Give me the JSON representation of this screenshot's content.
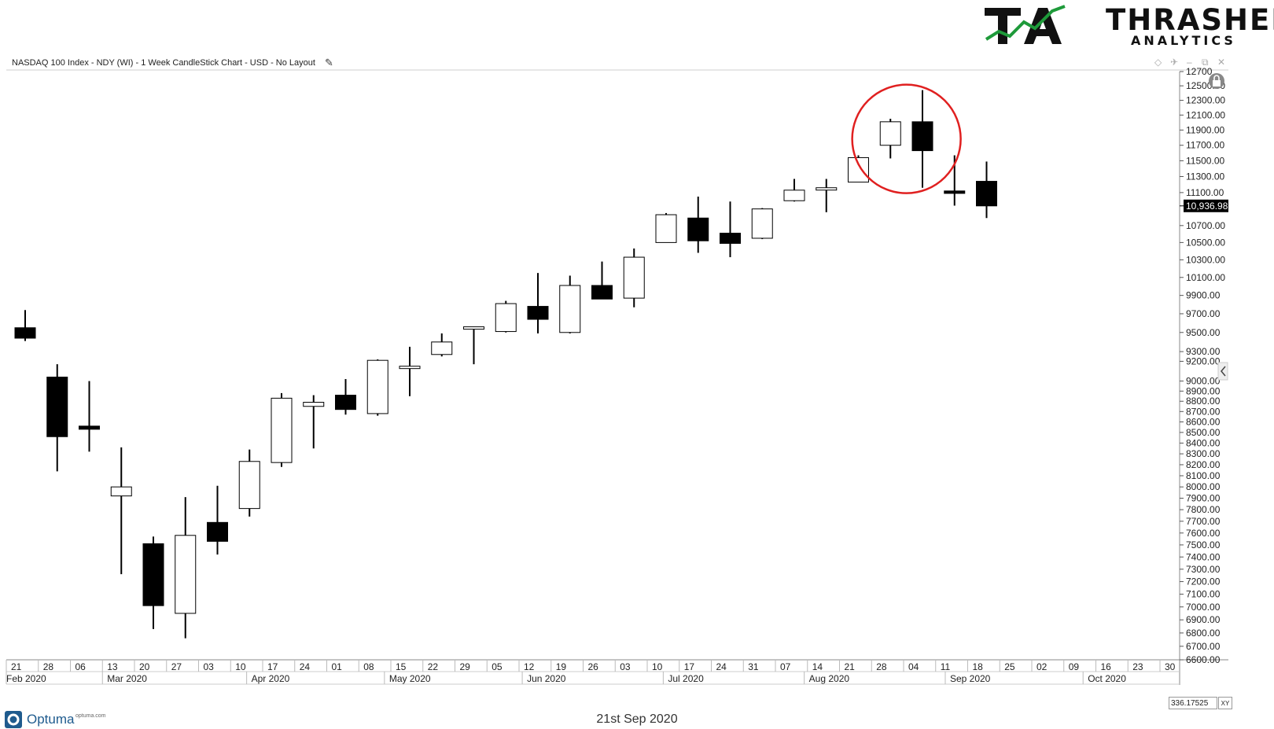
{
  "brand": {
    "name": "THRASHER",
    "sub": "ANALYTICS",
    "accent": "#1e9a3a"
  },
  "header": {
    "title": "NASDAQ 100 Index - NDY (WI) - 1 Week CandleStick Chart - USD - No Layout",
    "edit_icon": "pencil-icon"
  },
  "window_controls": [
    "diamond-icon",
    "pin-icon",
    "restore-icon",
    "close-icon"
  ],
  "footer": {
    "vendor": "Optuma",
    "vendor_url": "optuma.com",
    "date": "21st Sep 2020",
    "scale_value": "336.17525",
    "scale_mode": "XY"
  },
  "colors": {
    "down_candle": "#000000",
    "up_candle": "#ffffff",
    "highlight_circle": "#e02020",
    "last_price_bg": "#000000"
  },
  "chart_data": {
    "type": "candlestick",
    "title": "NASDAQ 100 Index - NDY (WI) - 1 Week CandleStick Chart - USD - No Layout",
    "y_scale": "log",
    "ylim": [
      6600,
      12700
    ],
    "last_price_label": "10,936.98",
    "last_price": 10936.98,
    "y_ticks": [
      {
        "value": 12700,
        "label": "12700"
      },
      {
        "value": 12500,
        "label": "12500.00"
      },
      {
        "value": 12300,
        "label": "12300.00"
      },
      {
        "value": 12100,
        "label": "12100.00"
      },
      {
        "value": 11900,
        "label": "11900.00"
      },
      {
        "value": 11700,
        "label": "11700.00"
      },
      {
        "value": 11500,
        "label": "11500.00"
      },
      {
        "value": 11300,
        "label": "11300.00"
      },
      {
        "value": 11100,
        "label": "11100.00"
      },
      {
        "value": 10700,
        "label": "10700.00"
      },
      {
        "value": 10500,
        "label": "10500.00"
      },
      {
        "value": 10300,
        "label": "10300.00"
      },
      {
        "value": 10100,
        "label": "10100.00"
      },
      {
        "value": 9900,
        "label": "9900.00"
      },
      {
        "value": 9700,
        "label": "9700.00"
      },
      {
        "value": 9500,
        "label": "9500.00"
      },
      {
        "value": 9300,
        "label": "9300.00"
      },
      {
        "value": 9200,
        "label": "9200.00"
      },
      {
        "value": 9000,
        "label": "9000.00"
      },
      {
        "value": 8900,
        "label": "8900.00"
      },
      {
        "value": 8800,
        "label": "8800.00"
      },
      {
        "value": 8700,
        "label": "8700.00"
      },
      {
        "value": 8600,
        "label": "8600.00"
      },
      {
        "value": 8500,
        "label": "8500.00"
      },
      {
        "value": 8400,
        "label": "8400.00"
      },
      {
        "value": 8300,
        "label": "8300.00"
      },
      {
        "value": 8200,
        "label": "8200.00"
      },
      {
        "value": 8100,
        "label": "8100.00"
      },
      {
        "value": 8000,
        "label": "8000.00"
      },
      {
        "value": 7900,
        "label": "7900.00"
      },
      {
        "value": 7800,
        "label": "7800.00"
      },
      {
        "value": 7700,
        "label": "7700.00"
      },
      {
        "value": 7600,
        "label": "7600.00"
      },
      {
        "value": 7500,
        "label": "7500.00"
      },
      {
        "value": 7400,
        "label": "7400.00"
      },
      {
        "value": 7300,
        "label": "7300.00"
      },
      {
        "value": 7200,
        "label": "7200.00"
      },
      {
        "value": 7100,
        "label": "7100.00"
      },
      {
        "value": 7000,
        "label": "7000.00"
      },
      {
        "value": 6900,
        "label": "6900.00"
      },
      {
        "value": 6800,
        "label": "6800.00"
      },
      {
        "value": 6700,
        "label": "6700.00"
      },
      {
        "value": 6600,
        "label": "6600.00"
      }
    ],
    "x_day_labels": [
      "21",
      "28",
      "06",
      "13",
      "20",
      "27",
      "03",
      "10",
      "17",
      "24",
      "01",
      "08",
      "15",
      "22",
      "29",
      "05",
      "12",
      "19",
      "26",
      "03",
      "10",
      "17",
      "24",
      "31",
      "07",
      "14",
      "21",
      "28",
      "04",
      "11",
      "18",
      "25",
      "02",
      "09",
      "16",
      "23",
      "30"
    ],
    "x_month_labels": [
      {
        "label": "Feb 2020",
        "week": 0
      },
      {
        "label": "Mar 2020",
        "week": 3
      },
      {
        "label": "Apr 2020",
        "week": 7.5
      },
      {
        "label": "May 2020",
        "week": 11.8
      },
      {
        "label": "Jun 2020",
        "week": 16.1
      },
      {
        "label": "Jul 2020",
        "week": 20.5
      },
      {
        "label": "Aug 2020",
        "week": 24.9
      },
      {
        "label": "Sep 2020",
        "week": 29.3
      },
      {
        "label": "Oct 2020",
        "week": 33.6
      }
    ],
    "candles": [
      {
        "week": "21",
        "open": 9550,
        "high": 9740,
        "low": 9410,
        "close": 9440
      },
      {
        "week": "28",
        "open": 9040,
        "high": 9170,
        "low": 8140,
        "close": 8460
      },
      {
        "week": "06",
        "open": 8560,
        "high": 9000,
        "low": 8320,
        "close": 8530
      },
      {
        "week": "13",
        "open": 7920,
        "high": 8360,
        "low": 7260,
        "close": 8000
      },
      {
        "week": "20",
        "open": 7510,
        "high": 7570,
        "low": 6830,
        "close": 7010
      },
      {
        "week": "27",
        "open": 6950,
        "high": 7910,
        "low": 6760,
        "close": 7580
      },
      {
        "week": "03",
        "open": 7690,
        "high": 8010,
        "low": 7420,
        "close": 7530
      },
      {
        "week": "10",
        "open": 7810,
        "high": 8340,
        "low": 7740,
        "close": 8230
      },
      {
        "week": "17",
        "open": 8220,
        "high": 8880,
        "low": 8180,
        "close": 8830
      },
      {
        "week": "24",
        "open": 8750,
        "high": 8860,
        "low": 8350,
        "close": 8790
      },
      {
        "week": "01",
        "open": 8860,
        "high": 9020,
        "low": 8670,
        "close": 8720
      },
      {
        "week": "08",
        "open": 8680,
        "high": 9220,
        "low": 8660,
        "close": 9210
      },
      {
        "week": "15",
        "open": 9140,
        "high": 9350,
        "low": 8850,
        "close": 9150
      },
      {
        "week": "22",
        "open": 9270,
        "high": 9490,
        "low": 9250,
        "close": 9400
      },
      {
        "week": "29",
        "open": 9550,
        "high": 9550,
        "low": 9170,
        "close": 9560
      },
      {
        "week": "05",
        "open": 9510,
        "high": 9840,
        "low": 9500,
        "close": 9810
      },
      {
        "week": "12",
        "open": 9780,
        "high": 10150,
        "low": 9490,
        "close": 9640
      },
      {
        "week": "19",
        "open": 9500,
        "high": 10120,
        "low": 9490,
        "close": 10010
      },
      {
        "week": "26",
        "open": 10010,
        "high": 10280,
        "low": 9870,
        "close": 9860
      },
      {
        "week": "03",
        "open": 9870,
        "high": 10430,
        "low": 9770,
        "close": 10330
      },
      {
        "week": "10",
        "open": 10500,
        "high": 10850,
        "low": 10500,
        "close": 10830
      },
      {
        "week": "17",
        "open": 10790,
        "high": 11050,
        "low": 10380,
        "close": 10520
      },
      {
        "week": "24",
        "open": 10610,
        "high": 10990,
        "low": 10330,
        "close": 10490
      },
      {
        "week": "31",
        "open": 10550,
        "high": 10910,
        "low": 10540,
        "close": 10900
      },
      {
        "week": "07",
        "open": 11000,
        "high": 11270,
        "low": 10990,
        "close": 11130
      },
      {
        "week": "14",
        "open": 11150,
        "high": 11270,
        "low": 10860,
        "close": 11160
      },
      {
        "week": "21",
        "open": 11230,
        "high": 11570,
        "low": 11230,
        "close": 11540
      },
      {
        "week": "28",
        "open": 11700,
        "high": 12050,
        "low": 11530,
        "close": 12010
      },
      {
        "week": "04",
        "open": 12010,
        "high": 12440,
        "low": 11160,
        "close": 11630
      },
      {
        "week": "11",
        "open": 11120,
        "high": 11570,
        "low": 10940,
        "close": 11090
      },
      {
        "week": "18",
        "open": 11240,
        "high": 11490,
        "low": 10790,
        "close": 10936.98
      }
    ],
    "highlight": {
      "shape": "circle",
      "around_weeks": [
        27,
        28
      ],
      "color": "#e02020"
    }
  }
}
